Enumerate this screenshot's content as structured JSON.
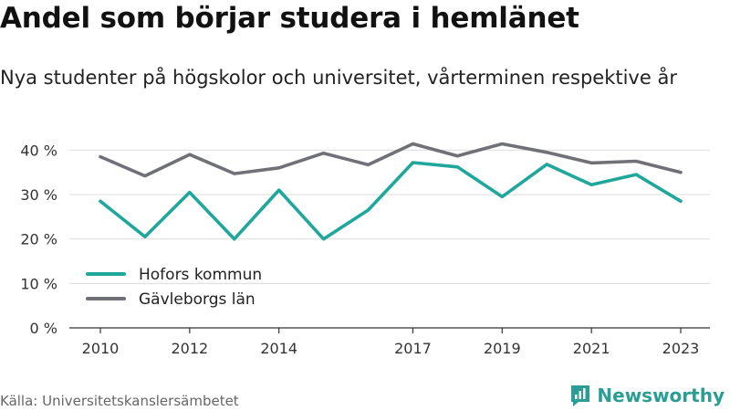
{
  "title": "Andel som börjar studera i hemlänet",
  "subtitle": "Nya studenter på högskolor och universitet, vårterminen respektive år",
  "source": "Källa: Universitetskanslersämbetet",
  "brand": "Newsworthy",
  "colors": {
    "hofors": "#1fa79c",
    "gavleborg": "#707078",
    "grid": "#dddddd",
    "axis": "#333333",
    "brand": "#2a9d94"
  },
  "chart_data": {
    "type": "line",
    "x": [
      2010,
      2011,
      2012,
      2013,
      2014,
      2015,
      2016,
      2017,
      2018,
      2019,
      2020,
      2021,
      2022,
      2023
    ],
    "x_tick_labels": [
      "2010",
      "2012",
      "2014",
      "2017",
      "2019",
      "2021",
      "2023"
    ],
    "y_tick_labels": [
      "0 %",
      "10 %",
      "20 %",
      "30 %",
      "40 %"
    ],
    "ylim": [
      0,
      45
    ],
    "series": [
      {
        "name": "Hofors kommun",
        "values": [
          28.5,
          20.5,
          30.5,
          20.0,
          31.0,
          20.0,
          26.5,
          37.2,
          36.2,
          29.5,
          36.8,
          32.2,
          34.5,
          28.5
        ]
      },
      {
        "name": "Gävleborgs län",
        "values": [
          38.5,
          34.2,
          39.0,
          34.7,
          36.0,
          39.3,
          36.7,
          41.4,
          38.7,
          41.4,
          39.5,
          37.1,
          37.5,
          35.0
        ]
      }
    ],
    "grid": true,
    "legend": "bottom-left"
  }
}
